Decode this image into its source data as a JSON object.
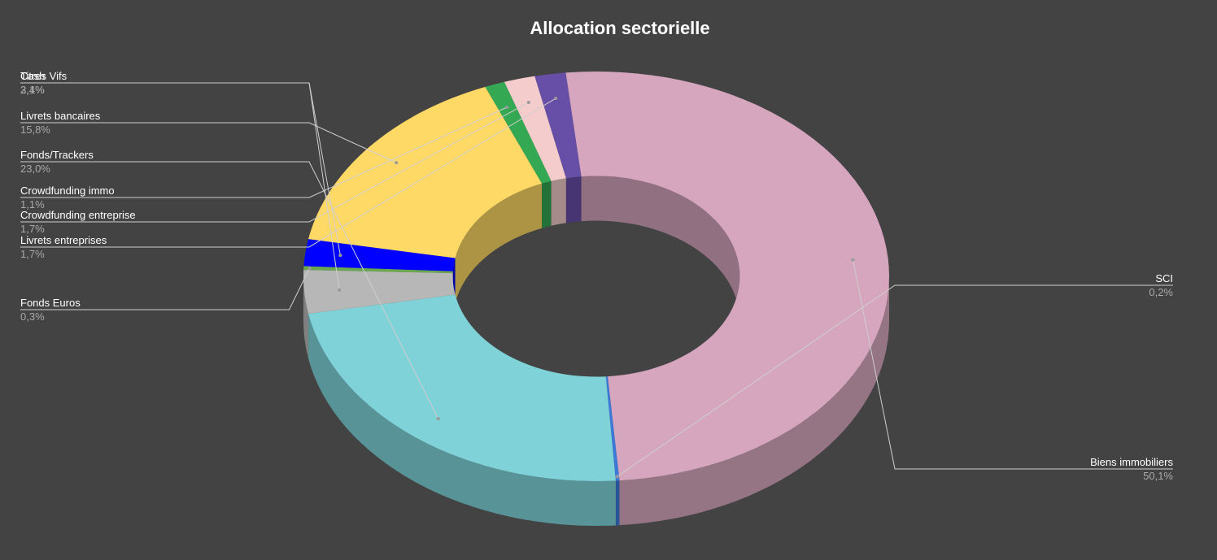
{
  "chart_data": {
    "type": "pie",
    "variant": "3d-donut",
    "title": "Allocation sectorielle",
    "background": "#434343",
    "slices": [
      {
        "label": "Fonds Euros",
        "value": 0.3,
        "value_label": "0,3%",
        "color": "#6aa84f"
      },
      {
        "label": "Cash",
        "value": 2.1,
        "value_label": "2,1%",
        "color": "#0000ff"
      },
      {
        "label": "Livrets bancaires",
        "value": 15.8,
        "value_label": "15,8%",
        "color": "#ffd966"
      },
      {
        "label": "Crowdfunding immo",
        "value": 1.1,
        "value_label": "1,1%",
        "color": "#34a853"
      },
      {
        "label": "Crowdfunding entreprise",
        "value": 1.7,
        "value_label": "1,7%",
        "color": "#f4cccc"
      },
      {
        "label": "Livrets entreprises",
        "value": 1.7,
        "value_label": "1,7%",
        "color": "#674ea7"
      },
      {
        "label": "Biens immobiliers",
        "value": 50.1,
        "value_label": "50,1%",
        "color": "#d5a6bd"
      },
      {
        "label": "SCI",
        "value": 0.2,
        "value_label": "0,2%",
        "color": "#3c78d8"
      },
      {
        "label": "Fonds/Trackers",
        "value": 23.0,
        "value_label": "23,0%",
        "color": "#7ed2d8"
      },
      {
        "label": "Titres Vifs",
        "value": 3.4,
        "value_label": "3,4%",
        "color": "#b7b7b7"
      }
    ],
    "legend": "none"
  }
}
